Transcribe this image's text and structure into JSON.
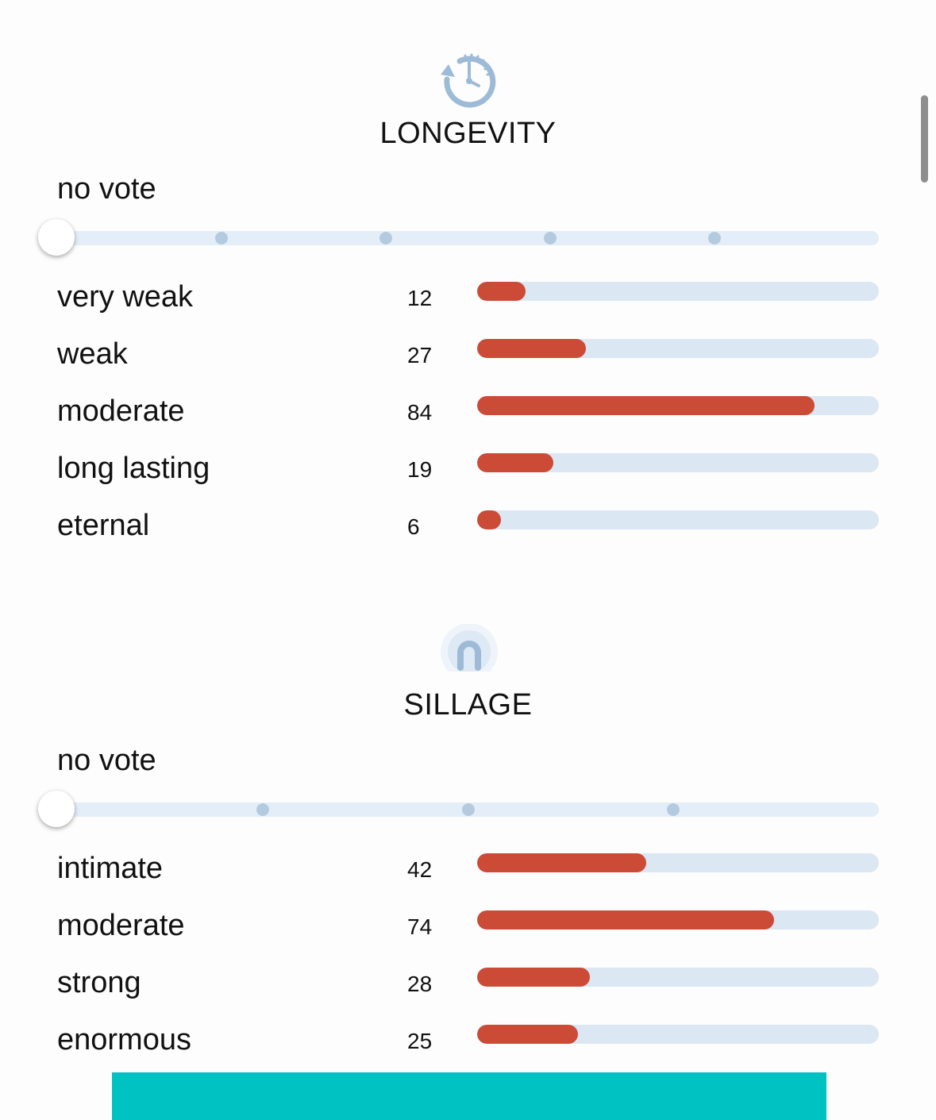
{
  "sections": [
    {
      "id": "longevity",
      "icon": "clock-rotate-icon",
      "title": "LONGEVITY",
      "vote_label": "no vote",
      "slider_stops": 5,
      "max_count": 100,
      "rows": [
        {
          "label": "very weak",
          "count": "12",
          "value": 12
        },
        {
          "label": "weak",
          "count": "27",
          "value": 27
        },
        {
          "label": "moderate",
          "count": "84",
          "value": 84
        },
        {
          "label": "long lasting",
          "count": "19",
          "value": 19
        },
        {
          "label": "eternal",
          "count": "6",
          "value": 6
        }
      ]
    },
    {
      "id": "sillage",
      "icon": "sillage-arch-icon",
      "title": "SILLAGE",
      "vote_label": "no vote",
      "slider_stops": 4,
      "max_count": 100,
      "rows": [
        {
          "label": "intimate",
          "count": "42",
          "value": 42
        },
        {
          "label": "moderate",
          "count": "74",
          "value": 74
        },
        {
          "label": "strong",
          "count": "28",
          "value": 28
        },
        {
          "label": "enormous",
          "count": "25",
          "value": 25
        }
      ]
    }
  ],
  "colors": {
    "bar_fill": "#cc4b37",
    "bar_track": "#dbe7f3",
    "slider_track": "#e4eef8",
    "slider_stop": "#b4cbdf",
    "icon": "#9dbbd6",
    "banner": "#00c2c2"
  }
}
